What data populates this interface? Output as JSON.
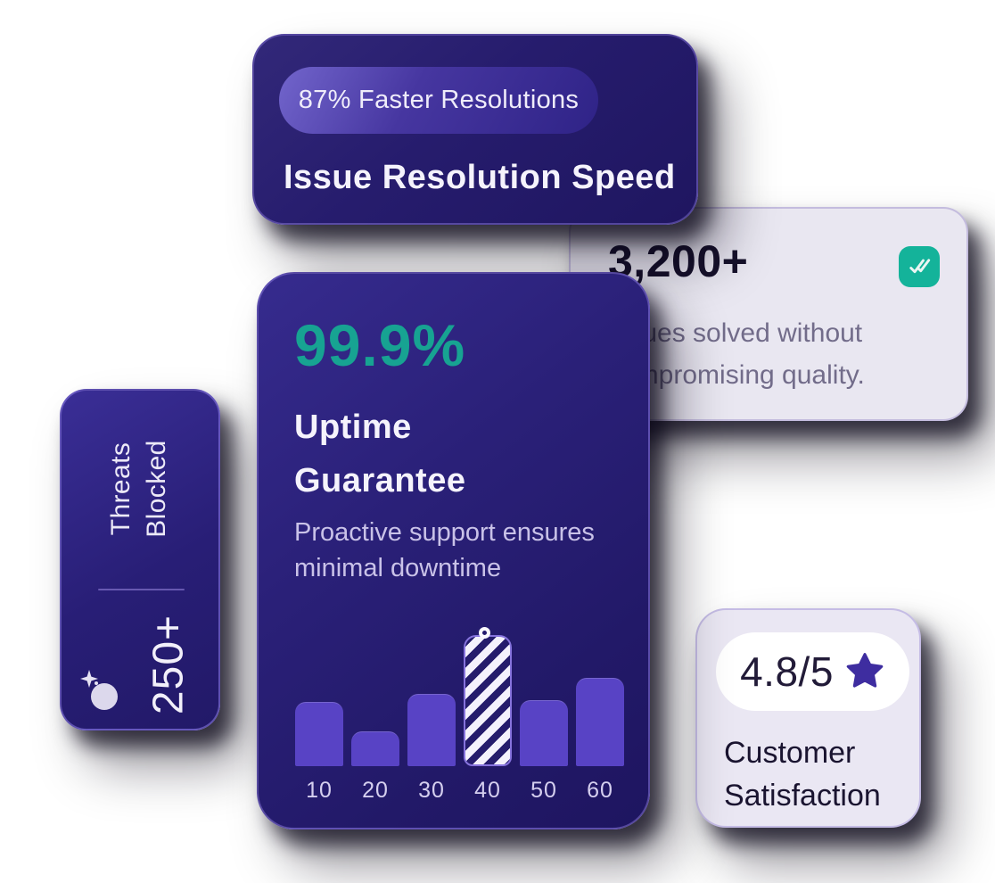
{
  "cards": {
    "resolution": {
      "badge": "87% Faster Resolutions",
      "title": "Issue Resolution Speed"
    },
    "issues": {
      "stat": "3,200+",
      "description_line1": "Issues solved without",
      "description_line2": "compromising quality."
    },
    "threats": {
      "label_line1": "Threats",
      "label_line2": "Blocked",
      "stat": "250+"
    },
    "uptime": {
      "stat": "99.9%",
      "title_line1": "Uptime",
      "title_line2": "Guarantee",
      "description_line1": "Proactive support ensures",
      "description_line2": "minimal downtime"
    },
    "satisfaction": {
      "rating": "4.8/5",
      "label_line1": "Customer",
      "label_line2": "Satisfaction"
    }
  },
  "chart_data": {
    "type": "bar",
    "title": "",
    "xlabel": "",
    "ylabel": "",
    "categories": [
      "10",
      "20",
      "30",
      "40",
      "50",
      "60"
    ],
    "values": [
      72,
      39,
      81,
      147,
      74,
      99
    ],
    "values_note": "bar heights in px; no y-axis shown, relative magnitudes only",
    "highlighted_index": 3,
    "highlight_style": "white diagonal stripes with circular marker dot on top",
    "grid": false,
    "legend": false
  },
  "icons": {
    "double_check": "double-check-icon",
    "star": "star-icon",
    "sparkle_orb": "sparkle-orb-icon",
    "marker": "bar-marker-dot"
  },
  "colors": {
    "accent_teal_text": "#17a392",
    "check_badge_teal": "#14b39a",
    "bar_purple": "#5843c5",
    "star_purple": "#3e2da0",
    "dark_card_indigo": "#271e73",
    "light_card_lavender": "#e9e7f1"
  }
}
